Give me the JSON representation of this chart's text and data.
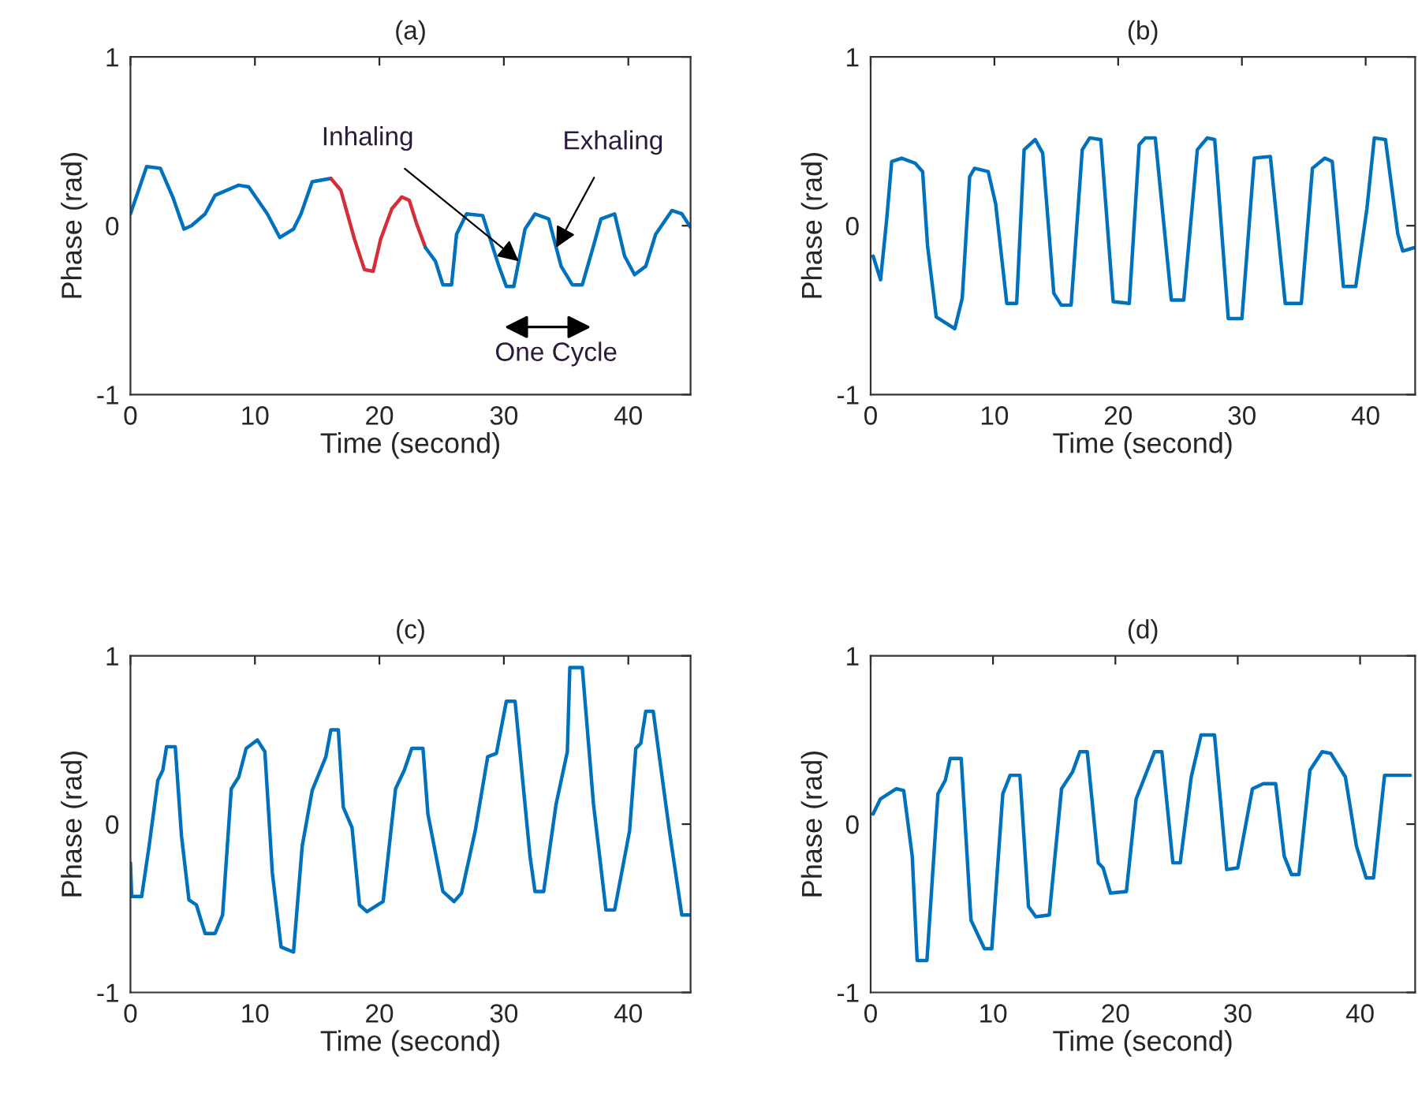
{
  "chart_data": [
    {
      "type": "line",
      "title": "(a)",
      "xlabel": "Time (second)",
      "ylabel": "Phase (rad)",
      "xlim": [
        0,
        45
      ],
      "ylim": [
        -1,
        1
      ],
      "xticks": [
        0,
        10,
        20,
        30,
        40
      ],
      "yticks": [
        -1,
        0,
        1
      ],
      "series": [
        {
          "color": "#0072bd",
          "x": [
            0,
            1.3,
            2.4,
            3.4,
            4.3,
            4.9,
            6,
            6.8,
            8.7,
            9.5,
            11,
            12,
            13.1,
            13.7,
            14.6,
            16.1
          ],
          "values": [
            0.07,
            0.35,
            0.34,
            0.17,
            -0.02,
            0,
            0.07,
            0.18,
            0.24,
            0.23,
            0.07,
            -0.07,
            -0.02,
            0.07,
            0.26,
            0.28
          ]
        },
        {
          "color": "#d62d3a",
          "x": [
            16.1,
            16.9,
            18,
            18.8,
            19.5,
            20.1,
            21,
            21.8,
            22.4,
            23,
            23.7
          ],
          "values": [
            0.28,
            0.21,
            -0.08,
            -0.26,
            -0.27,
            -0.08,
            0.1,
            0.17,
            0.15,
            0.01,
            -0.13
          ]
        },
        {
          "color": "#0072bd",
          "x": [
            23.7,
            24.5,
            25.1,
            25.8,
            26.2,
            27,
            28.3,
            29.6,
            30.2,
            30.8,
            31.7,
            32.5,
            33.6,
            34.6,
            35.5,
            36.3,
            37.2,
            37.8,
            38.9,
            39.7,
            40.5,
            41.4,
            42.2,
            43.5,
            44.3,
            45
          ],
          "values": [
            -0.13,
            -0.21,
            -0.35,
            -0.35,
            -0.05,
            0.07,
            0.06,
            -0.24,
            -0.36,
            -0.36,
            -0.02,
            0.07,
            0.04,
            -0.24,
            -0.35,
            -0.35,
            -0.12,
            0.04,
            0.07,
            -0.18,
            -0.29,
            -0.24,
            -0.05,
            0.09,
            0.07,
            -0.01
          ]
        }
      ],
      "annotations": [
        {
          "text": "Inhaling",
          "x": 31.2,
          "y": -0.21
        },
        {
          "text": "Exhaling",
          "x": 34.2,
          "y": -0.13
        },
        "One Cycle"
      ]
    },
    {
      "type": "line",
      "title": "(b)",
      "xlabel": "Time (second)",
      "ylabel": "Phase (rad)",
      "xlim": [
        0,
        44
      ],
      "ylim": [
        -1,
        1
      ],
      "xticks": [
        0,
        10,
        20,
        30,
        40
      ],
      "yticks": [
        -1,
        0,
        1
      ],
      "series": [
        {
          "color": "#0072bd",
          "x": [
            0.2,
            0.8,
            1.3,
            1.7,
            2.5,
            3.6,
            4.2,
            4.6,
            5.3,
            6.8,
            7.4,
            8,
            8.4,
            9.5,
            10.1,
            11,
            11.8,
            12.4,
            13.3,
            13.9,
            14.8,
            15.4,
            16.2,
            17.1,
            17.7,
            18.6,
            19.6,
            20.9,
            21.7,
            22.2,
            23,
            24.3,
            25.3,
            26.4,
            27.2,
            27.8,
            28.9,
            30,
            31,
            32.3,
            33.5,
            34.8,
            35.7,
            36.7,
            37.3,
            38.2,
            39.2,
            40.1,
            40.7,
            41.6,
            42.6,
            43,
            43.9
          ],
          "values": [
            -0.18,
            -0.32,
            0.04,
            0.38,
            0.4,
            0.37,
            0.32,
            -0.12,
            -0.54,
            -0.61,
            -0.43,
            0.29,
            0.34,
            0.32,
            0.13,
            -0.46,
            -0.46,
            0.45,
            0.51,
            0.43,
            -0.4,
            -0.47,
            -0.47,
            0.45,
            0.52,
            0.51,
            -0.45,
            -0.46,
            0.48,
            0.52,
            0.52,
            -0.44,
            -0.44,
            0.45,
            0.52,
            0.51,
            -0.55,
            -0.55,
            0.4,
            0.41,
            -0.46,
            -0.46,
            0.34,
            0.4,
            0.38,
            -0.36,
            -0.36,
            0.1,
            0.52,
            0.51,
            -0.05,
            -0.15,
            -0.13
          ]
        }
      ]
    },
    {
      "type": "line",
      "title": "(c)",
      "xlabel": "Time (second)",
      "ylabel": "Phase (rad)",
      "xlim": [
        0,
        45
      ],
      "ylim": [
        -1,
        1
      ],
      "xticks": [
        0,
        10,
        20,
        30,
        40
      ],
      "yticks": [
        -1,
        0,
        1
      ],
      "series": [
        {
          "color": "#0072bd",
          "x": [
            0,
            0.1,
            0.9,
            1.5,
            2.2,
            2.6,
            2.9,
            3.6,
            4.1,
            4.7,
            5.3,
            6,
            6.8,
            7.4,
            8.1,
            8.7,
            9.3,
            10.2,
            10.8,
            11.4,
            12.1,
            13.1,
            13.8,
            14.6,
            15.7,
            16.1,
            16.7,
            17.1,
            17.8,
            18.4,
            19,
            20.3,
            21.3,
            22,
            22.6,
            23.5,
            23.9,
            25.1,
            26,
            26.6,
            27.7,
            28.7,
            29.4,
            30.2,
            30.9,
            32.1,
            32.5,
            33.2,
            34.2,
            35.1,
            35.3,
            36.3,
            37.2,
            38.2,
            38.9,
            40.1,
            40.6,
            41,
            41.4,
            42,
            43.3,
            44.3,
            45
          ],
          "values": [
            -0.23,
            -0.43,
            -0.43,
            -0.13,
            0.26,
            0.32,
            0.46,
            0.46,
            -0.07,
            -0.45,
            -0.48,
            -0.65,
            -0.65,
            -0.54,
            0.21,
            0.28,
            0.45,
            0.5,
            0.43,
            -0.29,
            -0.73,
            -0.76,
            -0.13,
            0.2,
            0.4,
            0.56,
            0.56,
            0.1,
            -0.02,
            -0.48,
            -0.52,
            -0.46,
            0.21,
            0.32,
            0.45,
            0.45,
            0.06,
            -0.4,
            -0.46,
            -0.41,
            -0.04,
            0.4,
            0.42,
            0.73,
            0.73,
            -0.19,
            -0.4,
            -0.4,
            0.12,
            0.43,
            0.93,
            0.93,
            0.12,
            -0.51,
            -0.51,
            -0.04,
            0.45,
            0.48,
            0.67,
            0.67,
            -0.04,
            -0.54,
            -0.54
          ]
        }
      ]
    },
    {
      "type": "line",
      "title": "(d)",
      "xlabel": "Time (second)",
      "ylabel": "Phase (rad)",
      "xlim": [
        0,
        44.5
      ],
      "ylim": [
        -1,
        1
      ],
      "xticks": [
        0,
        10,
        20,
        30,
        40
      ],
      "yticks": [
        -1,
        0,
        1
      ],
      "series": [
        {
          "color": "#0072bd",
          "x": [
            0.2,
            0.8,
            2.1,
            2.7,
            3.4,
            3.8,
            4.6,
            5.5,
            6.1,
            6.5,
            7.4,
            8.2,
            9.3,
            9.9,
            10.8,
            11.4,
            12.2,
            12.9,
            13.5,
            14.6,
            15.6,
            16.5,
            17.1,
            17.7,
            18.6,
            19,
            19.6,
            20.9,
            21.7,
            22.4,
            23.2,
            23.8,
            24.7,
            25.3,
            26.2,
            27,
            28.1,
            29.1,
            30,
            31.2,
            32.1,
            33.1,
            33.8,
            34.4,
            35,
            35.9,
            36.9,
            37.6,
            38.8,
            39.7,
            40.5,
            41.1,
            42,
            44.1
          ],
          "values": [
            0.06,
            0.15,
            0.21,
            0.2,
            -0.19,
            -0.81,
            -0.81,
            0.18,
            0.26,
            0.39,
            0.39,
            -0.57,
            -0.74,
            -0.74,
            0.18,
            0.29,
            0.29,
            -0.49,
            -0.55,
            -0.54,
            0.21,
            0.31,
            0.43,
            0.43,
            -0.23,
            -0.26,
            -0.41,
            -0.4,
            0.15,
            0.28,
            0.43,
            0.43,
            -0.23,
            -0.23,
            0.28,
            0.53,
            0.53,
            -0.27,
            -0.26,
            0.21,
            0.24,
            0.24,
            -0.19,
            -0.3,
            -0.3,
            0.32,
            0.43,
            0.42,
            0.28,
            -0.13,
            -0.32,
            -0.32,
            0.29,
            0.29
          ]
        }
      ]
    }
  ]
}
